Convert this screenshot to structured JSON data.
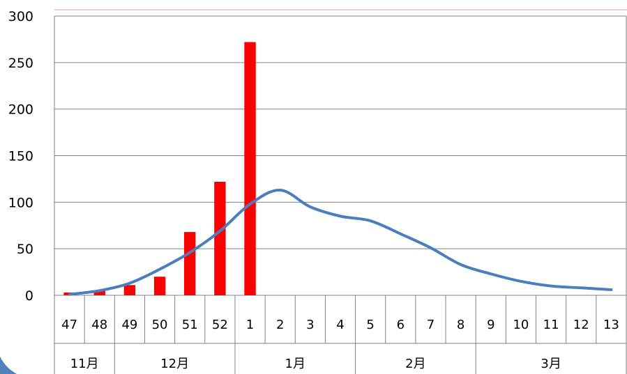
{
  "chart_data": {
    "type": "bar+line",
    "categories": [
      "47",
      "48",
      "49",
      "50",
      "51",
      "52",
      "1",
      "2",
      "3",
      "4",
      "5",
      "6",
      "7",
      "8",
      "9",
      "10",
      "11",
      "12",
      "13"
    ],
    "months": [
      {
        "label": "11月",
        "span": 2
      },
      {
        "label": "12月",
        "span": 4
      },
      {
        "label": "1月",
        "span": 4
      },
      {
        "label": "2月",
        "span": 4
      },
      {
        "label": "3月",
        "span": 5
      }
    ],
    "y_ticks": [
      "0",
      "50",
      "100",
      "150",
      "200",
      "250",
      "300"
    ],
    "ylim": [
      0,
      300
    ],
    "grid": true,
    "series": [
      {
        "kind": "bar",
        "color": "#ff0000",
        "values": [
          3,
          5,
          11,
          20,
          68,
          122,
          272,
          null,
          null,
          null,
          null,
          null,
          null,
          null,
          null,
          null,
          null,
          null,
          null
        ]
      },
      {
        "kind": "line",
        "color": "#4a7ebf",
        "values": [
          1,
          5,
          13,
          28,
          46,
          69,
          98,
          113,
          95,
          85,
          80,
          66,
          51,
          33,
          23,
          15,
          10,
          8,
          6
        ]
      }
    ]
  },
  "colors": {
    "frame": "#808080",
    "grid": "#808080",
    "top_accent": "#d9a0a0"
  }
}
